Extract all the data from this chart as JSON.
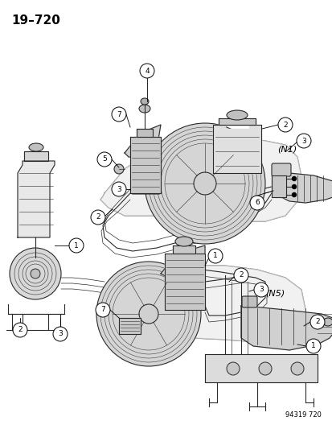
{
  "title": "19–720",
  "figure_number": "94319 720",
  "bg": "#f5f5f0",
  "lc": "#2a2a2a",
  "tc": "#000000",
  "N1_label": "(N1)",
  "N5_label": "(N5)",
  "fs_title": 11,
  "fs_label": 8,
  "fs_callout": 6.5,
  "fs_fignum": 6
}
